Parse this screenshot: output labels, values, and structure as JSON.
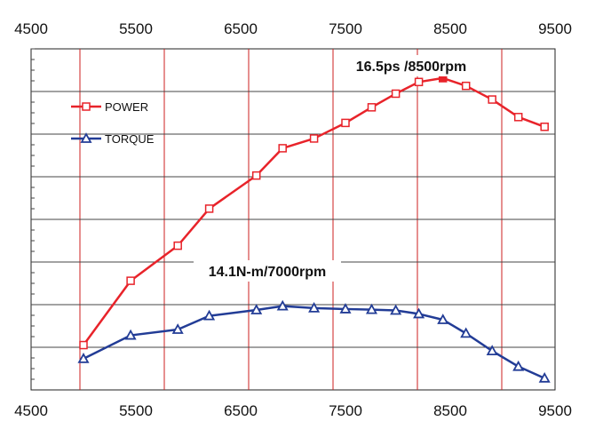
{
  "chart_data": {
    "type": "line",
    "title": "",
    "xlabel": "",
    "ylabel": "",
    "xlim": [
      4500,
      9500
    ],
    "xticks": [
      4500,
      5500,
      6500,
      7500,
      8500,
      9500
    ],
    "xtick_labels": [
      "4500",
      "5500",
      "6500",
      "7500",
      "8500",
      "9500"
    ],
    "y_axis_labels_shown": false,
    "grid": true,
    "legend_position": "top-left",
    "series": [
      {
        "name": "POWER",
        "color": "#e8232a",
        "marker": "square",
        "x": [
          5000,
          5450,
          5900,
          6200,
          6650,
          6900,
          7200,
          7500,
          7750,
          7980,
          8200,
          8430,
          8650,
          8900,
          9150,
          9400
        ],
        "y": [
          2.3,
          5.6,
          7.4,
          9.3,
          11.0,
          12.4,
          12.9,
          13.7,
          14.5,
          15.2,
          15.8,
          16.0,
          15.6,
          14.9,
          14.0,
          13.5
        ]
      },
      {
        "name": "TORQUE",
        "color": "#223c96",
        "marker": "triangle",
        "x": [
          5000,
          5450,
          5900,
          6200,
          6650,
          6900,
          7200,
          7500,
          7750,
          7980,
          8200,
          8430,
          8650,
          8900,
          9150,
          9400
        ],
        "y": [
          1.6,
          2.8,
          3.1,
          3.8,
          4.1,
          4.3,
          4.2,
          4.15,
          4.12,
          4.08,
          3.9,
          3.6,
          2.9,
          2.0,
          1.2,
          0.6
        ]
      }
    ],
    "annotations": [
      {
        "text": "16.5ps /8500rpm",
        "series": "POWER"
      },
      {
        "text": "14.1N-m/7000rpm",
        "series": "TORQUE"
      }
    ]
  }
}
